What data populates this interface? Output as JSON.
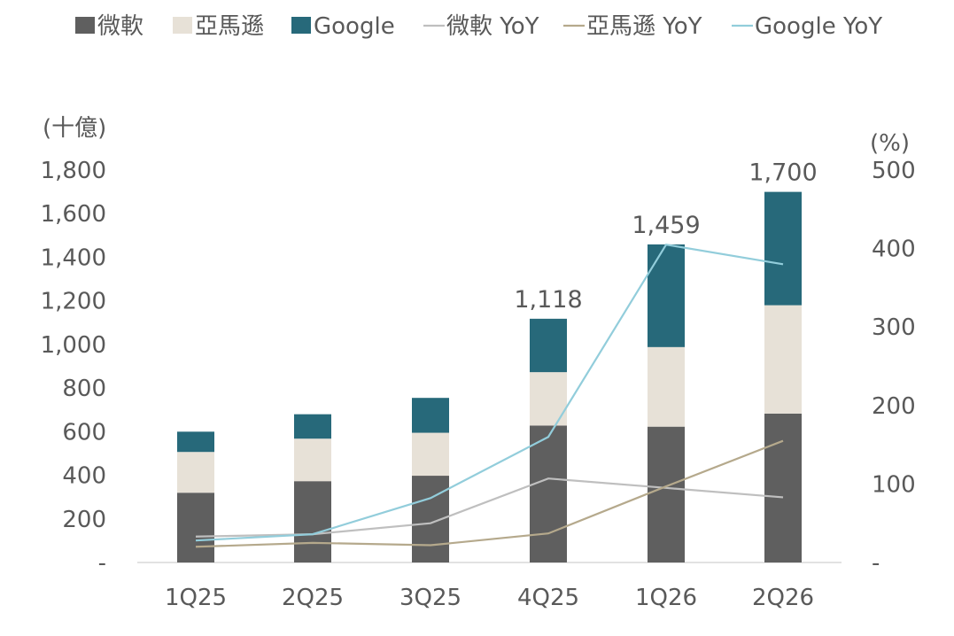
{
  "chart_data": {
    "type": "bar",
    "stacked": true,
    "categories": [
      "1Q25",
      "2Q25",
      "3Q25",
      "4Q25",
      "1Q26",
      "2Q26"
    ],
    "series": [
      {
        "name": "微軟",
        "type": "bar",
        "axis": "left",
        "color": "#5f5f5f",
        "values": [
          320,
          373,
          398,
          628,
          623,
          683
        ]
      },
      {
        "name": "亞馬遜",
        "type": "bar",
        "axis": "left",
        "color": "#e7e1d7",
        "values": [
          187,
          195,
          197,
          245,
          365,
          497
        ]
      },
      {
        "name": "Google",
        "type": "bar",
        "axis": "left",
        "color": "#27697a",
        "values": [
          93,
          112,
          160,
          245,
          471,
          520
        ]
      },
      {
        "name": "微軟 YoY",
        "type": "line",
        "axis": "right",
        "color": "#bfbfbf",
        "values": [
          33,
          36,
          50,
          107,
          95,
          83
        ]
      },
      {
        "name": "亞馬遜 YoY",
        "type": "line",
        "axis": "right",
        "color": "#b5a98c",
        "values": [
          20,
          25,
          22,
          37,
          97,
          155
        ]
      },
      {
        "name": "Google YoY",
        "type": "line",
        "axis": "right",
        "color": "#92cddb",
        "values": [
          28,
          36,
          82,
          160,
          405,
          380
        ]
      }
    ],
    "totals_labels": [
      {
        "category": "4Q25",
        "text": "1,118"
      },
      {
        "category": "1Q26",
        "text": "1,459"
      },
      {
        "category": "2Q26",
        "text": "1,700"
      }
    ],
    "y_left": {
      "unit_label": "(十億)",
      "ylim": [
        0,
        1800
      ],
      "ticks": [
        "-",
        "200",
        "400",
        "600",
        "800",
        "1,000",
        "1,200",
        "1,400",
        "1,600",
        "1,800"
      ]
    },
    "y_right": {
      "unit_label": "(%)",
      "ylim": [
        0,
        500
      ],
      "ticks": [
        "-",
        "100",
        "200",
        "300",
        "400",
        "500"
      ]
    },
    "grid": false,
    "legend_position": "top"
  }
}
